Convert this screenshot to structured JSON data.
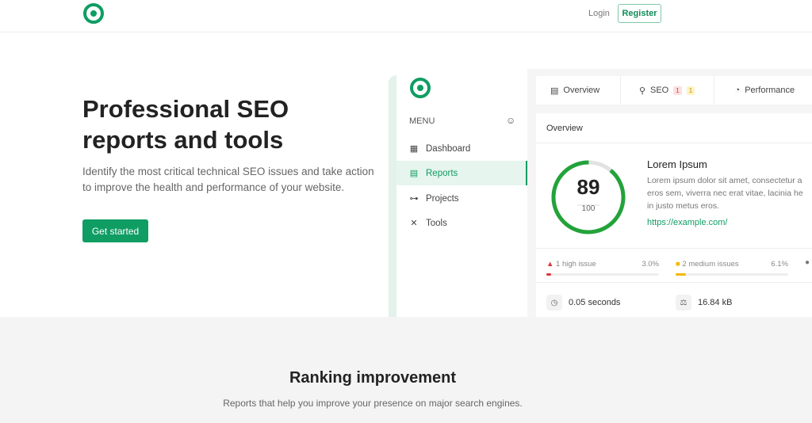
{
  "header": {
    "login": "Login",
    "register": "Register"
  },
  "hero": {
    "title": "Professional SEO reports and tools",
    "subtitle": "Identify the most critical technical SEO issues and take action to improve the health and performance of your website.",
    "cta": "Get started"
  },
  "mockup": {
    "menu_label": "MENU",
    "sidebar": [
      {
        "label": "Dashboard",
        "icon": "grid-icon"
      },
      {
        "label": "Reports",
        "icon": "report-icon",
        "active": true
      },
      {
        "label": "Projects",
        "icon": "hierarchy-icon"
      },
      {
        "label": "Tools",
        "icon": "tools-icon"
      }
    ],
    "tabs": [
      {
        "label": "Overview",
        "icon": "list-icon"
      },
      {
        "label": "SEO",
        "icon": "search-icon",
        "badges": [
          "1",
          "1"
        ]
      },
      {
        "label": "Performance",
        "icon": "gauge-icon"
      }
    ],
    "overview": {
      "title": "Overview",
      "score": "89",
      "max": "100",
      "score_fraction": 0.89,
      "site_title": "Lorem Ipsum",
      "desc_lines": [
        "Lorem ipsum dolor sit amet, consectetur a",
        "eros sem, viverra nec erat vitae, lacinia he",
        "in justo metus eros."
      ],
      "url": "https://example.com/"
    },
    "issues": [
      {
        "label": "1 high issue",
        "pct": "3.0%",
        "value": 3.0,
        "color": "#d9363e"
      },
      {
        "label": "2 medium issues",
        "pct": "6.1%",
        "value": 6.1,
        "color": "#f5b800"
      }
    ],
    "metrics": [
      {
        "value": "0.05 seconds",
        "icon": "timer-icon"
      },
      {
        "value": "16.84 kB",
        "icon": "scale-icon"
      }
    ]
  },
  "section": {
    "title": "Ranking improvement",
    "subtitle": "Reports that help you improve your presence on major search engines."
  },
  "colors": {
    "accent": "#0f9d63",
    "score_ring": "#22a33a"
  }
}
